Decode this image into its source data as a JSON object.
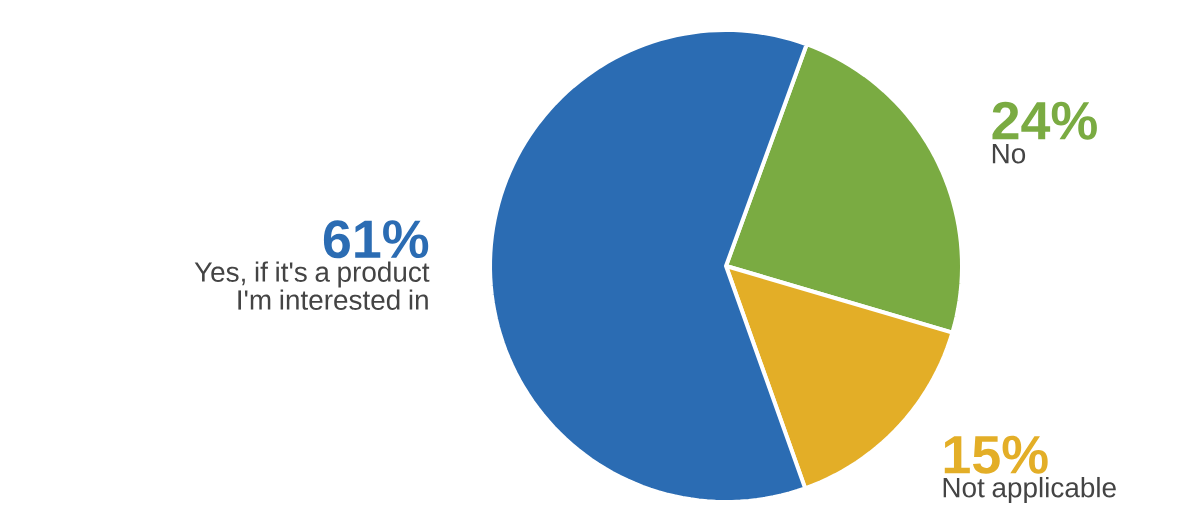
{
  "chart_data": {
    "type": "pie",
    "categories": [
      "No",
      "Not applicable",
      "Yes, if it's a product I'm interested in"
    ],
    "values": [
      24,
      15,
      61
    ],
    "value_labels": [
      "24%",
      "15%",
      "61%"
    ],
    "colors": [
      "#7aab42",
      "#e3ae27",
      "#2b6cb3"
    ]
  }
}
